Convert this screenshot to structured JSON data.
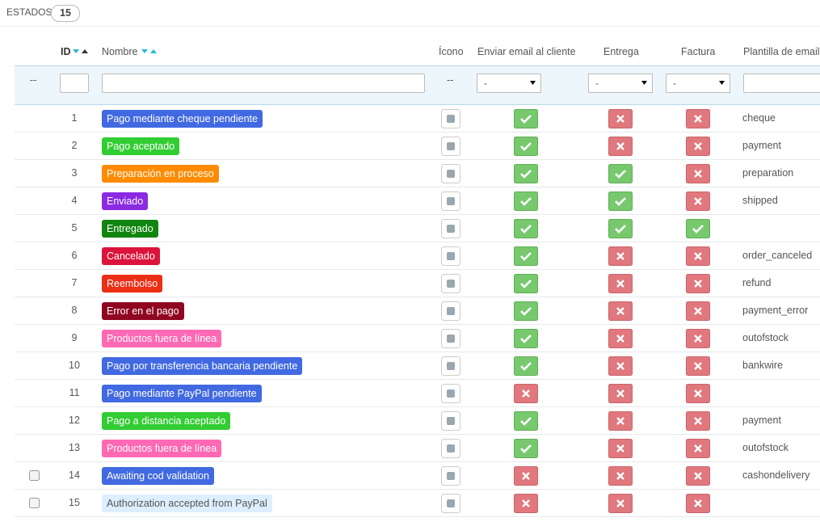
{
  "header": {
    "title": "ESTADOS",
    "count": 15
  },
  "columns": {
    "id": "ID",
    "name": "Nombre",
    "icon": "Ícono",
    "send_email": "Enviar email al cliente",
    "delivery": "Entrega",
    "invoice": "Factura",
    "template": "Plantilla de email"
  },
  "filters": {
    "checkbox": "--",
    "icon": "--",
    "send_email": "-",
    "delivery": "-",
    "invoice": "-"
  },
  "rows": [
    {
      "id": 1,
      "name": "Pago mediante cheque pendiente",
      "color": "#4169e1",
      "send_email": true,
      "delivery": false,
      "invoice": false,
      "template": "cheque",
      "selectable": false
    },
    {
      "id": 2,
      "name": "Pago aceptado",
      "color": "#32cd32",
      "send_email": true,
      "delivery": false,
      "invoice": false,
      "template": "payment",
      "selectable": false
    },
    {
      "id": 3,
      "name": "Preparación en proceso",
      "color": "#ff8c00",
      "send_email": true,
      "delivery": true,
      "invoice": false,
      "template": "preparation",
      "selectable": false
    },
    {
      "id": 4,
      "name": "Enviado",
      "color": "#8a2be2",
      "send_email": true,
      "delivery": true,
      "invoice": false,
      "template": "shipped",
      "selectable": false
    },
    {
      "id": 5,
      "name": "Entregado",
      "color": "#108510",
      "send_email": true,
      "delivery": true,
      "invoice": true,
      "template": null,
      "selectable": false
    },
    {
      "id": 6,
      "name": "Cancelado",
      "color": "#dc143c",
      "send_email": true,
      "delivery": false,
      "invoice": false,
      "template": "order_canceled",
      "selectable": false
    },
    {
      "id": 7,
      "name": "Reembolso",
      "color": "#ec2e15",
      "send_email": true,
      "delivery": false,
      "invoice": false,
      "template": "refund",
      "selectable": false
    },
    {
      "id": 8,
      "name": "Error en el pago",
      "color": "#8f0621",
      "send_email": true,
      "delivery": false,
      "invoice": false,
      "template": "payment_error",
      "selectable": false
    },
    {
      "id": 9,
      "name": "Productos fuera de línea",
      "color": "#ff69b4",
      "send_email": true,
      "delivery": false,
      "invoice": false,
      "template": "outofstock",
      "selectable": false
    },
    {
      "id": 10,
      "name": "Pago por transferencia bancaria pendiente",
      "color": "#4169e1",
      "send_email": true,
      "delivery": false,
      "invoice": false,
      "template": "bankwire",
      "selectable": false
    },
    {
      "id": 11,
      "name": "Pago mediante PayPal pendiente",
      "color": "#4169e1",
      "send_email": false,
      "delivery": false,
      "invoice": false,
      "template": null,
      "selectable": false
    },
    {
      "id": 12,
      "name": "Pago a distancia aceptado",
      "color": "#32cd32",
      "send_email": true,
      "delivery": false,
      "invoice": false,
      "template": "payment",
      "selectable": false
    },
    {
      "id": 13,
      "name": "Productos fuera de línea",
      "color": "#ff69b4",
      "send_email": true,
      "delivery": false,
      "invoice": false,
      "template": "outofstock",
      "selectable": false
    },
    {
      "id": 14,
      "name": "Awaiting cod validation",
      "color": "#4169e1",
      "send_email": false,
      "delivery": false,
      "invoice": false,
      "template": "cashondelivery",
      "selectable": true
    },
    {
      "id": 15,
      "name": "Authorization accepted from PayPal",
      "color": "#ddeeff",
      "send_email": false,
      "delivery": false,
      "invoice": false,
      "template": null,
      "selectable": true
    }
  ]
}
